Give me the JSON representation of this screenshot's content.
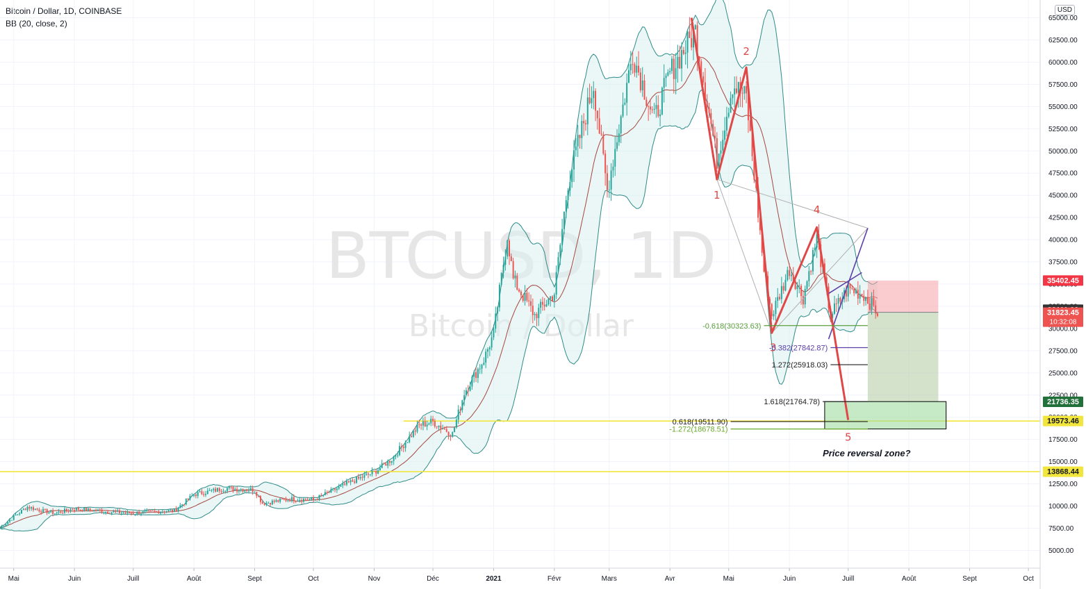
{
  "header": {
    "title": "Bitcoin / Dollar, 1D, COINBASE",
    "indicator": "BB (20, close, 2)"
  },
  "watermark": {
    "symbol": "BTCUSD, 1D",
    "name": "Bitcoin / Dollar"
  },
  "currency_button": "USD",
  "colors": {
    "bull": "#26a69a",
    "bear": "#ef5350",
    "bb_band": "#2e8b88",
    "bb_fill": "#d8f0ee",
    "basis": "#a5463f",
    "yellow": "#f2e53b",
    "wave": "#e04848",
    "purple": "#5b3fa8"
  },
  "chart_data": {
    "type": "candlestick",
    "title": "Bitcoin / Dollar, 1D, COINBASE",
    "y_axis": {
      "range": [
        3000,
        67000
      ],
      "ticks": [
        "5000.00",
        "7500.00",
        "10000.00",
        "12500.00",
        "15000.00",
        "17500.00",
        "20000.00",
        "22500.00",
        "25000.00",
        "27500.00",
        "30000.00",
        "32500.00",
        "35000.00",
        "37500.00",
        "40000.00",
        "42500.00",
        "45000.00",
        "47500.00",
        "50000.00",
        "52500.00",
        "55000.00",
        "57500.00",
        "60000.00",
        "62500.00",
        "65000.00"
      ],
      "tick_values": [
        5000,
        7500,
        10000,
        12500,
        15000,
        17500,
        20000,
        22500,
        25000,
        27500,
        30000,
        32500,
        35000,
        37500,
        40000,
        42500,
        45000,
        47500,
        50000,
        52500,
        55000,
        57500,
        60000,
        62500,
        65000
      ]
    },
    "x_axis": {
      "labels": [
        "Mai",
        "Juin",
        "Juill",
        "Août",
        "Sept",
        "Oct",
        "Nov",
        "Déc",
        "2021",
        "Févr",
        "Mars",
        "Avr",
        "Mai",
        "Juin",
        "Juill",
        "Août",
        "Sept",
        "Oct"
      ],
      "dates": [
        "2020-05-01",
        "2020-06-01",
        "2020-07-01",
        "2020-08-01",
        "2020-09-01",
        "2020-10-01",
        "2020-11-01",
        "2020-12-01",
        "2021-01-01",
        "2021-02-01",
        "2021-03-01",
        "2021-04-01",
        "2021-05-01",
        "2021-06-01",
        "2021-07-01",
        "2021-08-01",
        "2021-09-01",
        "2021-10-01"
      ]
    },
    "price_path": [
      [
        "2020-04-24",
        7500
      ],
      [
        "2020-05-01",
        8800
      ],
      [
        "2020-05-08",
        9900
      ],
      [
        "2020-05-15",
        9500
      ],
      [
        "2020-05-22",
        9200
      ],
      [
        "2020-06-01",
        9700
      ],
      [
        "2020-06-15",
        9400
      ],
      [
        "2020-07-01",
        9200
      ],
      [
        "2020-07-22",
        9500
      ],
      [
        "2020-08-01",
        11300
      ],
      [
        "2020-08-17",
        12000
      ],
      [
        "2020-09-01",
        11800
      ],
      [
        "2020-09-05",
        10300
      ],
      [
        "2020-09-20",
        10800
      ],
      [
        "2020-10-01",
        10700
      ],
      [
        "2020-10-21",
        12800
      ],
      [
        "2020-11-01",
        13800
      ],
      [
        "2020-11-10",
        15300
      ],
      [
        "2020-11-24",
        19100
      ],
      [
        "2020-12-01",
        19500
      ],
      [
        "2020-12-11",
        18100
      ],
      [
        "2020-12-17",
        22800
      ],
      [
        "2020-12-27",
        26500
      ],
      [
        "2021-01-01",
        29400
      ],
      [
        "2021-01-08",
        40500
      ],
      [
        "2021-01-11",
        35500
      ],
      [
        "2021-01-22",
        31500
      ],
      [
        "2021-02-01",
        34000
      ],
      [
        "2021-02-08",
        46500
      ],
      [
        "2021-02-21",
        57500
      ],
      [
        "2021-02-28",
        45500
      ],
      [
        "2021-03-13",
        61000
      ],
      [
        "2021-03-24",
        53500
      ],
      [
        "2021-04-01",
        58800
      ],
      [
        "2021-04-14",
        63500
      ],
      [
        "2021-04-25",
        49000
      ],
      [
        "2021-05-03",
        57500
      ],
      [
        "2021-05-10",
        56000
      ],
      [
        "2021-05-19",
        36500
      ],
      [
        "2021-05-23",
        31500
      ],
      [
        "2021-06-01",
        36700
      ],
      [
        "2021-06-08",
        33500
      ],
      [
        "2021-06-15",
        40200
      ],
      [
        "2021-06-22",
        31500
      ],
      [
        "2021-07-01",
        34500
      ],
      [
        "2021-07-09",
        33800
      ],
      [
        "2021-07-16",
        31823
      ]
    ],
    "bollinger": {
      "period": 20,
      "source": "close",
      "stddev": 2
    },
    "price_labels": [
      {
        "value": 35402.45,
        "text": "35402.45",
        "bg": "#f23645",
        "fg": "#ffffff"
      },
      {
        "value": 32111.0,
        "text": "32111.00",
        "bg": "#333333",
        "fg": "#ffffff"
      },
      {
        "value": 31823.45,
        "text": "31823.45",
        "sub": "10:32:08",
        "bg": "#ef5350",
        "fg": "#ffffff"
      },
      {
        "value": 21736.35,
        "text": "21736.35",
        "bg": "#22703a",
        "fg": "#ffffff"
      },
      {
        "value": 19573.46,
        "text": "19573.46",
        "bg": "#f2e53b",
        "fg": "#131722"
      },
      {
        "value": 13868.44,
        "text": "13868.44",
        "bg": "#f2e53b",
        "fg": "#131722"
      }
    ],
    "fib_levels": [
      {
        "text": "-0.618(30323.63)",
        "value": 30323.63,
        "color": "#5a9e3c",
        "x0": "2021-05-19",
        "x1": "2021-07-11"
      },
      {
        "text": "-0.382(27842.87)",
        "value": 27842.87,
        "color": "#5b3fa8",
        "x0": "2021-06-22",
        "x1": "2021-07-11"
      },
      {
        "text": "1.272(25918.03)",
        "value": 25918.03,
        "color": "#222222",
        "x0": "2021-06-22",
        "x1": "2021-07-11"
      },
      {
        "text": "1.618(21764.78)",
        "value": 21764.78,
        "color": "#222222",
        "x0": "2021-06-18",
        "x1": "2021-07-11"
      },
      {
        "text": "0.618(19511.90)",
        "value": 19511.9,
        "color": "#222222",
        "x0": "2021-05-02",
        "x1": "2021-07-11"
      },
      {
        "text": "-1.272(18678.51)",
        "value": 18678.51,
        "color": "#6aaa2e",
        "x0": "2021-05-02",
        "x1": "2021-07-11"
      }
    ],
    "horizontal_lines": [
      {
        "value": 19573.46,
        "color": "#f2e53b",
        "from": "2020-11-16"
      },
      {
        "value": 13868.44,
        "color": "#f2e53b",
        "from": "2020-04-24"
      }
    ],
    "waves": [
      {
        "label": "1",
        "date": "2021-04-25",
        "value": 46800
      },
      {
        "label": "2",
        "date": "2021-05-10",
        "value": 59400
      },
      {
        "label": "3",
        "date": "2021-05-23",
        "value": 29500
      },
      {
        "label": "4",
        "date": "2021-06-15",
        "value": 41400
      },
      {
        "label": "5",
        "date": "2021-07-01",
        "value": 19700
      }
    ],
    "wave_path": [
      [
        "2021-04-12",
        65000
      ],
      [
        "2021-04-25",
        46800
      ],
      [
        "2021-05-10",
        59400
      ],
      [
        "2021-05-23",
        29500
      ],
      [
        "2021-06-15",
        41400
      ],
      [
        "2021-07-01",
        19700
      ]
    ],
    "triangle": [
      [
        "2021-04-25",
        46800
      ],
      [
        "2021-07-11",
        41300
      ],
      [
        "2021-05-23",
        29500
      ]
    ],
    "channel": [
      [
        [
          "2021-06-21",
          28800
        ],
        [
          "2021-07-11",
          41300
        ]
      ],
      [
        [
          "2021-06-20",
          33800
        ],
        [
          "2021-07-08",
          36300
        ]
      ]
    ],
    "trade_zones": {
      "risk": {
        "from": "2021-07-11",
        "to": "2021-08-16",
        "top": 35402.45,
        "bottom": 31823.45
      },
      "reward": {
        "from": "2021-07-11",
        "to": "2021-08-16",
        "top": 31823.45,
        "bottom": 21736.35
      }
    },
    "reversal_zone": {
      "from": "2021-06-19",
      "to": "2021-08-20",
      "top": 21764.78,
      "bottom": 18678.51
    },
    "annotation": {
      "text": "Price reversal zone?",
      "date": "2021-06-18",
      "value": 15600
    }
  }
}
